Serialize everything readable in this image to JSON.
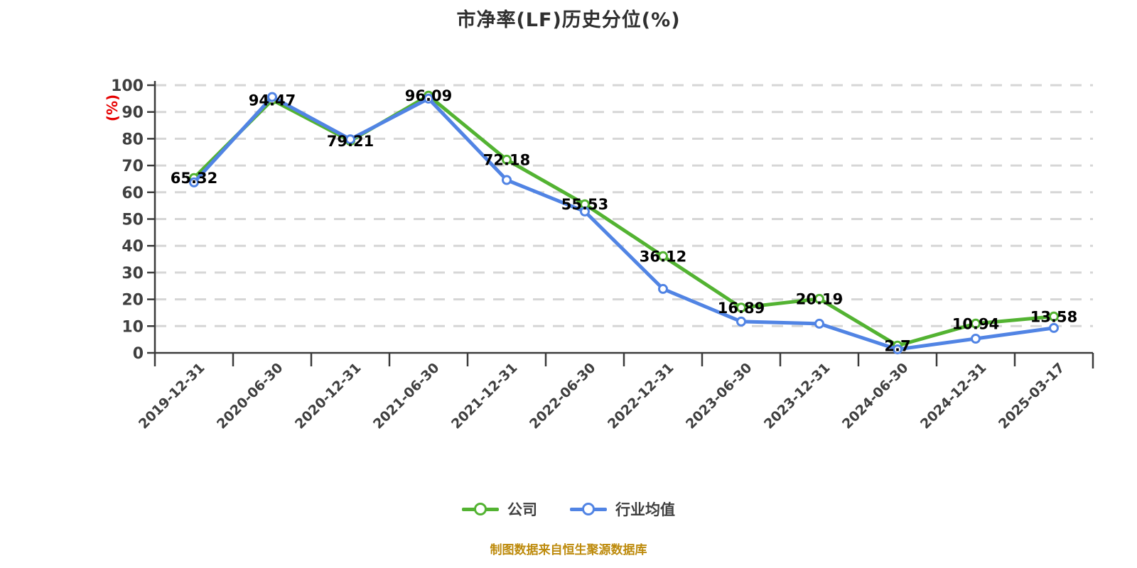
{
  "page": {
    "title": "市净率(LF)历史分位(%)",
    "footer": "制图数据来自恒生聚源数据库"
  },
  "legend": {
    "items": [
      {
        "label": "公司",
        "color": "#53b332"
      },
      {
        "label": "行业均值",
        "color": "#5184e4"
      }
    ]
  },
  "colors": {
    "company_green": "#53b332",
    "industry_blue": "#5184e4",
    "grid_line": "#d6d6d6",
    "axis_line": "#3b3b3b",
    "tick_text": "#3f3f3f",
    "data_label": "#000000",
    "y_unit_red": "#e60000",
    "footer_gold": "#bd8a0b"
  },
  "chart_data": {
    "type": "line",
    "title": "市净率(LF)历史分位(%)",
    "ylabel": "(%)",
    "xlabel": "",
    "ylim": [
      0,
      100
    ],
    "y_tick_interval": 10,
    "y_ticks": [
      0,
      10,
      20,
      30,
      40,
      50,
      60,
      70,
      80,
      90,
      100
    ],
    "grid": "horizontal dashed",
    "legend_position": "bottom",
    "categories": [
      "2019-12-31",
      "2020-06-30",
      "2020-12-31",
      "2021-06-30",
      "2021-12-31",
      "2022-06-30",
      "2022-12-31",
      "2023-06-30",
      "2023-12-31",
      "2024-06-30",
      "2024-12-31",
      "2025-03-17"
    ],
    "series": [
      {
        "name": "公司",
        "color": "#53b332",
        "show_labels": true,
        "values": [
          65.32,
          94.47,
          79.21,
          96.09,
          72.18,
          55.53,
          36.12,
          16.89,
          20.19,
          2.7,
          10.94,
          13.58
        ],
        "labels": [
          "65.32",
          "94.47",
          "79.21",
          "96.09",
          "72.18",
          "55.53",
          "36.12",
          "16.89",
          "20.19",
          "2.7",
          "10.94",
          "13.58"
        ]
      },
      {
        "name": "行业均值",
        "color": "#5184e4",
        "show_labels": false,
        "values_estimated_from_pixels": true,
        "values": [
          63.7,
          95.6,
          79.8,
          95.0,
          64.6,
          52.8,
          23.9,
          11.7,
          10.9,
          1.3,
          5.3,
          9.3
        ]
      }
    ]
  }
}
